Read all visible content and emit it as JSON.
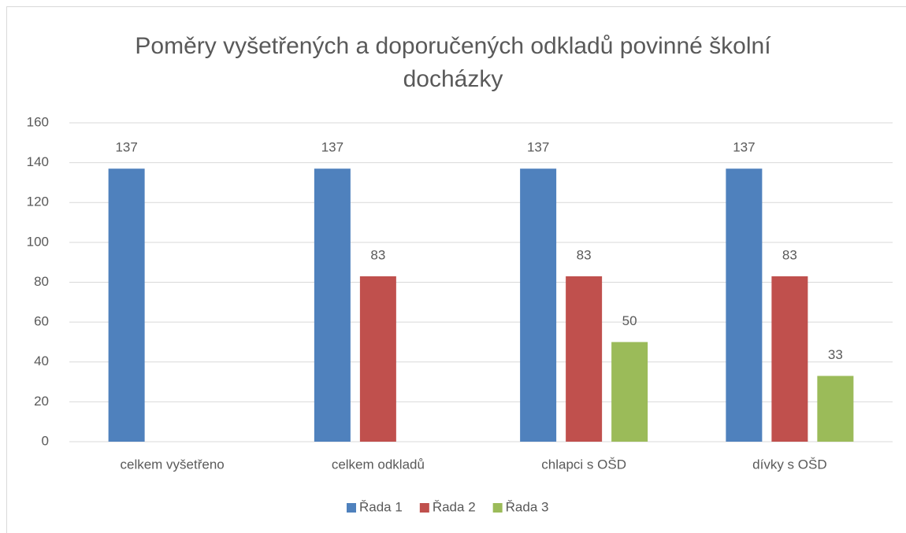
{
  "chart_data": {
    "type": "bar",
    "title": "Poměry vyšetřených a doporučených odkladů povinné školní docházky",
    "categories": [
      "celkem vyšetřeno",
      "celkem odkladů",
      "chlapci s OŠD",
      "dívky s OŠD"
    ],
    "series": [
      {
        "name": "Řada 1",
        "color": "#4f81bd",
        "values": [
          137,
          137,
          137,
          137
        ]
      },
      {
        "name": "Řada 2",
        "color": "#c0504d",
        "values": [
          null,
          83,
          83,
          83
        ]
      },
      {
        "name": "Řada 3",
        "color": "#9bbb59",
        "values": [
          null,
          null,
          50,
          33
        ]
      }
    ],
    "ylim": [
      0,
      160
    ],
    "yticks": [
      0,
      20,
      40,
      60,
      80,
      100,
      120,
      140,
      160
    ],
    "grid": true,
    "legend": "bottom"
  }
}
